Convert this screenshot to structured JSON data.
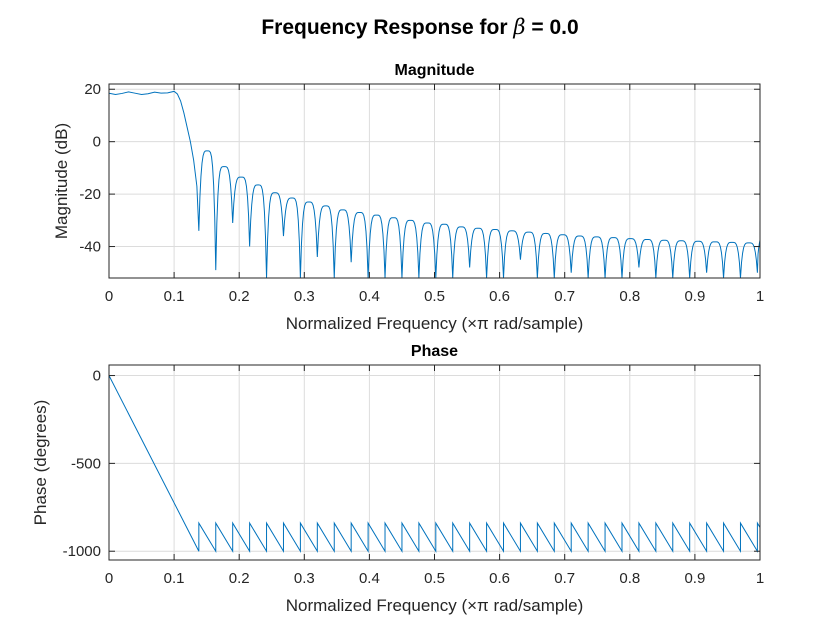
{
  "chart_data": {
    "title_prefix": "Frequency Response for",
    "title_symbol": "β",
    "title_suffix": " = 0.0",
    "series_color": "#0072BD",
    "grid": true,
    "subplots": [
      {
        "type": "line",
        "title": "Magnitude",
        "xlabel": "Normalized Frequency  (×π rad/sample)",
        "ylabel": "Magnitude (dB)",
        "xlim": [
          0,
          1
        ],
        "ylim": [
          -52,
          22
        ],
        "xticks": [
          0,
          0.1,
          0.2,
          0.3,
          0.4,
          0.5,
          0.6,
          0.7,
          0.8,
          0.9,
          1
        ],
        "xtick_labels": [
          "0",
          "0.1",
          "0.2",
          "0.3",
          "0.4",
          "0.5",
          "0.6",
          "0.7",
          "0.8",
          "0.9",
          "1"
        ],
        "yticks": [
          20,
          0,
          -20,
          -40
        ],
        "ytick_labels": [
          "20",
          "0",
          "-20",
          "-40"
        ],
        "passband": {
          "x": [
            0,
            0.01,
            0.02,
            0.03,
            0.04,
            0.05,
            0.06,
            0.07,
            0.08,
            0.09,
            0.1,
            0.105,
            0.11,
            0.115,
            0.12,
            0.125,
            0.13,
            0.135,
            0.138
          ],
          "y": [
            18.5,
            18.0,
            18.4,
            19.0,
            18.5,
            18.0,
            18.3,
            18.9,
            18.5,
            18.6,
            19.2,
            18.2,
            15.5,
            11.0,
            5.5,
            0.0,
            -7.0,
            -17.0,
            -34.0
          ]
        },
        "nulls": [
          0.138,
          0.164,
          0.19,
          0.216,
          0.242,
          0.268,
          0.294,
          0.32,
          0.346,
          0.372,
          0.398,
          0.424,
          0.45,
          0.476,
          0.502,
          0.528,
          0.554,
          0.58,
          0.606,
          0.632,
          0.658,
          0.684,
          0.71,
          0.736,
          0.762,
          0.788,
          0.814,
          0.84,
          0.866,
          0.892,
          0.918,
          0.944,
          0.97,
          0.996
        ],
        "null_depths": [
          -34,
          -49,
          -31,
          -40,
          -52,
          -36,
          -52,
          -44,
          -52,
          -46,
          -52,
          -52,
          -52,
          -52,
          -52,
          -52,
          -48,
          -52,
          -52,
          -45,
          -52,
          -52,
          -50,
          -52,
          -52,
          -52,
          -48,
          -52,
          -52,
          -52,
          -50,
          -52,
          -52,
          -50
        ],
        "sidelobe_peaks": [
          -3.5,
          -9.5,
          -13.5,
          -16.5,
          -19.5,
          -21.5,
          -23.0,
          -24.5,
          -26.0,
          -27.0,
          -28.0,
          -29.0,
          -30.0,
          -31.0,
          -31.5,
          -32.5,
          -33.0,
          -33.5,
          -34.0,
          -34.5,
          -35.0,
          -35.5,
          -36.0,
          -36.3,
          -36.6,
          -37.0,
          -37.3,
          -37.6,
          -37.8,
          -38.0,
          -38.2,
          -38.4,
          -38.6
        ],
        "end_value": -37.5
      },
      {
        "type": "line",
        "title": "Phase",
        "xlabel": "Normalized Frequency  (×π rad/sample)",
        "ylabel": "Phase (degrees)",
        "xlim": [
          0,
          1
        ],
        "ylim": [
          -1050,
          60
        ],
        "xticks": [
          0,
          0.1,
          0.2,
          0.3,
          0.4,
          0.5,
          0.6,
          0.7,
          0.8,
          0.9,
          1
        ],
        "xtick_labels": [
          "0",
          "0.1",
          "0.2",
          "0.3",
          "0.4",
          "0.5",
          "0.6",
          "0.7",
          "0.8",
          "0.9",
          "1"
        ],
        "yticks": [
          0,
          -500,
          -1000
        ],
        "ytick_labels": [
          "0",
          "-500",
          "-1000"
        ],
        "ramp": {
          "x": [
            0,
            0.138
          ],
          "y": [
            0,
            -1000
          ]
        },
        "sawtooth": {
          "start": 0.138,
          "period": 0.026,
          "high": -840,
          "low": -1000
        },
        "end_value": -890
      }
    ]
  }
}
